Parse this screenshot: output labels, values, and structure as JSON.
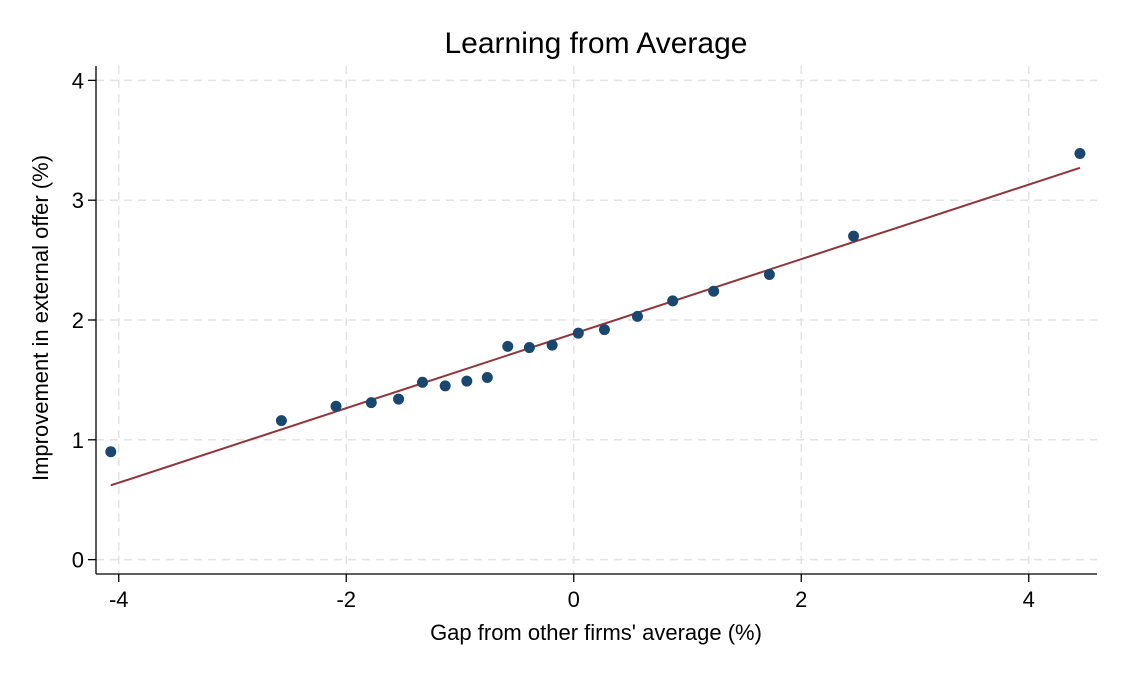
{
  "chart_data": {
    "type": "scatter",
    "title": "Learning from Average",
    "xlabel": "Gap from other firms' average (%)",
    "ylabel": "Improvement in external offer (%)",
    "xlim": [
      -4.2,
      4.6
    ],
    "ylim": [
      -0.12,
      4.12
    ],
    "xticks": [
      -4,
      -2,
      0,
      2,
      4
    ],
    "yticks": [
      0,
      1,
      2,
      3,
      4
    ],
    "xtick_labels": [
      "-4",
      "-2",
      "0",
      "2",
      "4"
    ],
    "ytick_labels": [
      "0",
      "1",
      "2",
      "3",
      "4"
    ],
    "grid": true,
    "series": [
      {
        "kind": "points",
        "color": "#1a476f",
        "points": [
          {
            "x": -4.07,
            "y": 0.9
          },
          {
            "x": -2.57,
            "y": 1.16
          },
          {
            "x": -2.09,
            "y": 1.28
          },
          {
            "x": -1.78,
            "y": 1.31
          },
          {
            "x": -1.54,
            "y": 1.34
          },
          {
            "x": -1.33,
            "y": 1.48
          },
          {
            "x": -1.13,
            "y": 1.45
          },
          {
            "x": -0.94,
            "y": 1.49
          },
          {
            "x": -0.76,
            "y": 1.52
          },
          {
            "x": -0.58,
            "y": 1.78
          },
          {
            "x": -0.39,
            "y": 1.77
          },
          {
            "x": -0.19,
            "y": 1.79
          },
          {
            "x": 0.04,
            "y": 1.89
          },
          {
            "x": 0.27,
            "y": 1.92
          },
          {
            "x": 0.56,
            "y": 2.03
          },
          {
            "x": 0.87,
            "y": 2.16
          },
          {
            "x": 1.23,
            "y": 2.24
          },
          {
            "x": 1.72,
            "y": 2.38
          },
          {
            "x": 2.46,
            "y": 2.7
          },
          {
            "x": 4.45,
            "y": 3.39
          }
        ]
      },
      {
        "kind": "fit-line",
        "color": "#90353b",
        "x": [
          -4.07,
          4.45
        ],
        "y": [
          0.62,
          3.27
        ]
      }
    ]
  }
}
